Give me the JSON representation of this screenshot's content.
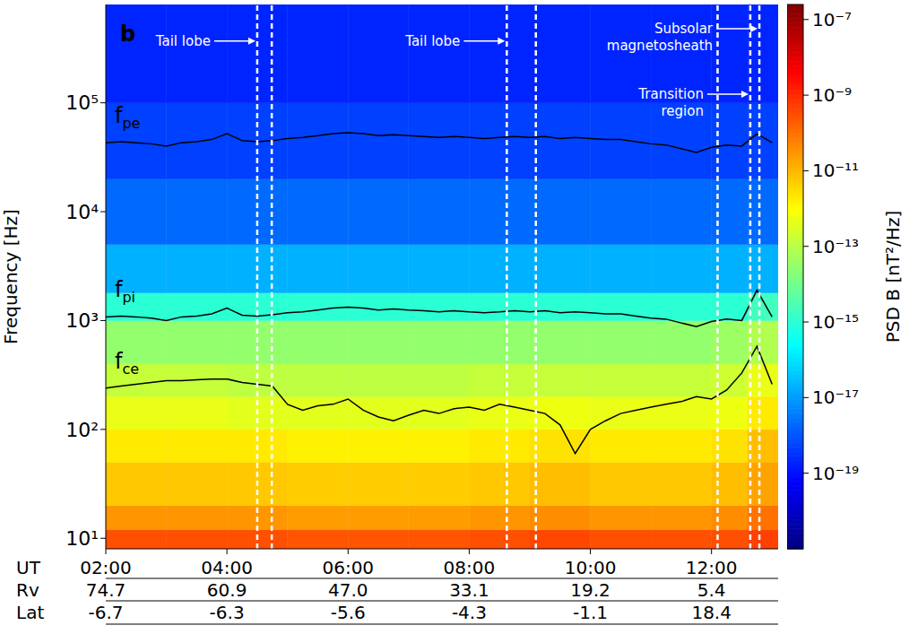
{
  "chart_data": {
    "type": "spectrogram",
    "panel_label": "b",
    "ylabel": "Frequency [Hz]",
    "xlabel": "UT",
    "log": "y",
    "xlim": [
      2,
      13.1
    ],
    "xticks": [
      {
        "value": 2,
        "label": "02:00"
      },
      {
        "value": 4,
        "label": "04:00"
      },
      {
        "value": 6,
        "label": "06:00"
      },
      {
        "value": 8,
        "label": "08:00"
      },
      {
        "value": 10,
        "label": "10:00"
      },
      {
        "value": 12,
        "label": "12:00"
      }
    ],
    "x_rows": [
      {
        "name": "Rv",
        "labels": [
          "74.7",
          "60.9",
          "47.0",
          "33.1",
          "19.2",
          "5.4"
        ]
      },
      {
        "name": "Lat",
        "labels": [
          "-6.7",
          "-6.3",
          "-5.6",
          "-4.3",
          "-1.1",
          "18.4"
        ]
      }
    ],
    "ylim": [
      8,
      800000
    ],
    "yticks": [
      {
        "value": 10,
        "label": "10¹"
      },
      {
        "value": 100,
        "label": "10²"
      },
      {
        "value": 1000,
        "label": "10³"
      },
      {
        "value": 10000,
        "label": "10⁴"
      },
      {
        "value": 100000,
        "label": "10⁵"
      }
    ],
    "x": [
      2.0,
      2.25,
      2.5,
      2.75,
      3.0,
      3.25,
      3.5,
      3.75,
      4.0,
      4.25,
      4.5,
      4.75,
      5.0,
      5.25,
      5.5,
      5.75,
      6.0,
      6.25,
      6.5,
      6.75,
      7.0,
      7.25,
      7.5,
      7.75,
      8.0,
      8.25,
      8.5,
      8.75,
      9.0,
      9.25,
      9.5,
      9.75,
      10.0,
      10.25,
      10.5,
      10.75,
      11.0,
      11.25,
      11.5,
      11.75,
      12.0,
      12.25,
      12.5,
      12.75,
      13.0
    ],
    "series": [
      {
        "name": "fpe",
        "color": "#000000",
        "values": [
          43000,
          44000,
          43000,
          42000,
          40000,
          43000,
          44000,
          46000,
          52000,
          45000,
          44000,
          45000,
          47000,
          48000,
          50000,
          52000,
          53000,
          52000,
          50000,
          51000,
          50000,
          49000,
          48000,
          49000,
          48000,
          47000,
          48000,
          49000,
          48000,
          49000,
          47000,
          48000,
          47000,
          46000,
          46000,
          44000,
          42000,
          41000,
          38000,
          35000,
          39000,
          41000,
          40000,
          52000,
          43000
        ]
      },
      {
        "name": "fpi",
        "color": "#000000",
        "values": [
          1080,
          1100,
          1080,
          1050,
          1000,
          1080,
          1100,
          1150,
          1300,
          1120,
          1100,
          1130,
          1180,
          1200,
          1250,
          1300,
          1330,
          1300,
          1250,
          1280,
          1250,
          1230,
          1200,
          1230,
          1200,
          1180,
          1200,
          1230,
          1200,
          1230,
          1180,
          1200,
          1180,
          1150,
          1150,
          1100,
          1050,
          1030,
          950,
          880,
          980,
          1030,
          1000,
          1900,
          1080
        ]
      },
      {
        "name": "fce",
        "color": "#000000",
        "values": [
          240,
          250,
          260,
          270,
          280,
          280,
          285,
          290,
          290,
          270,
          260,
          250,
          170,
          150,
          165,
          170,
          190,
          150,
          130,
          120,
          135,
          150,
          140,
          155,
          160,
          150,
          170,
          160,
          150,
          140,
          110,
          60,
          100,
          120,
          140,
          150,
          160,
          170,
          180,
          200,
          190,
          230,
          330,
          580,
          260
        ]
      }
    ],
    "boundaries": [
      4.5,
      4.74,
      8.62,
      9.1,
      12.1,
      12.64,
      12.79
    ],
    "annotations": [
      {
        "text": "Tail lobe",
        "x": 4.5,
        "y": 370000
      },
      {
        "text": "Tail lobe",
        "x": 8.62,
        "y": 370000
      },
      {
        "text": "Subsolar magnetosheath",
        "x": 12.79,
        "y": 480000
      },
      {
        "text": "Transition region",
        "x": 12.64,
        "y": 120000
      }
    ],
    "heatmap": {
      "x_edges": [
        2,
        3,
        4,
        5,
        6,
        7,
        8,
        9,
        10,
        11,
        12,
        12.6,
        13.1
      ],
      "y_edges": [
        8,
        12,
        20,
        50,
        100,
        200,
        400,
        1000,
        1800,
        5000,
        20000,
        100000,
        800000
      ],
      "cells": [
        [
          3e-10,
          3e-10,
          3e-10,
          2.5e-10,
          2.5e-10,
          2.5e-10,
          3e-10,
          4e-10,
          3e-10,
          3e-10,
          3e-10,
          5e-10
        ],
        [
          3e-11,
          3e-11,
          3e-11,
          2.5e-11,
          2.5e-11,
          2.5e-11,
          3e-11,
          4e-11,
          3e-11,
          3e-11,
          4e-11,
          1e-10
        ],
        [
          6e-12,
          6e-12,
          6e-12,
          5e-12,
          5e-12,
          5e-12,
          6e-12,
          8e-12,
          6e-12,
          6e-12,
          8e-12,
          2e-11
        ],
        [
          2e-12,
          2e-12,
          2e-12,
          1.5e-12,
          1.5e-12,
          1.5e-12,
          2e-12,
          2.5e-12,
          2e-12,
          2e-12,
          2.5e-12,
          8e-12
        ],
        [
          5e-13,
          5e-13,
          4e-13,
          4e-13,
          4e-13,
          4e-13,
          5e-13,
          6e-13,
          5e-13,
          5e-13,
          6e-13,
          2e-12
        ],
        [
          1.5e-13,
          1.5e-13,
          1.2e-13,
          1.2e-13,
          1.2e-13,
          1.2e-13,
          1.5e-13,
          1.5e-13,
          1.5e-13,
          1.5e-13,
          2e-13,
          5e-13
        ],
        [
          3e-14,
          3e-14,
          3e-14,
          3e-14,
          3e-14,
          3e-14,
          3e-14,
          3e-14,
          3e-14,
          3e-14,
          4e-14,
          8e-14
        ],
        [
          1e-15,
          1e-15,
          1e-15,
          1e-15,
          1e-15,
          1e-15,
          1e-15,
          1e-15,
          1e-15,
          1e-15,
          1e-15,
          2e-15
        ],
        [
          2e-17,
          2e-17,
          2e-17,
          2e-17,
          2e-17,
          2e-17,
          2e-17,
          2e-17,
          2e-17,
          2e-17,
          2e-17,
          2e-17
        ],
        [
          2e-18,
          2e-18,
          2e-18,
          2e-18,
          2e-18,
          2e-18,
          2e-18,
          2e-18,
          2e-18,
          2e-18,
          2e-18,
          2e-18
        ],
        [
          5e-19,
          5e-19,
          5e-19,
          5e-19,
          5e-19,
          5e-19,
          5e-19,
          5e-19,
          5e-19,
          5e-19,
          5e-19,
          5e-19
        ],
        [
          2e-19,
          2e-19,
          2e-19,
          2e-19,
          2e-19,
          2e-19,
          2e-19,
          2e-19,
          2e-19,
          2e-19,
          2e-19,
          2e-19
        ]
      ]
    },
    "colorbar": {
      "label": "PSD B [nT²/Hz]",
      "log": true,
      "range": [
        1e-21,
        2.5e-07
      ],
      "ticks": [
        {
          "value": 1e-07,
          "label": "10⁻⁷"
        },
        {
          "value": 1e-09,
          "label": "10⁻⁹"
        },
        {
          "value": 1e-11,
          "label": "10⁻¹¹"
        },
        {
          "value": 1e-13,
          "label": "10⁻¹³"
        },
        {
          "value": 1e-15,
          "label": "10⁻¹⁵"
        },
        {
          "value": 1e-17,
          "label": "10⁻¹⁷"
        },
        {
          "value": 1e-19,
          "label": "10⁻¹⁹"
        }
      ]
    }
  }
}
